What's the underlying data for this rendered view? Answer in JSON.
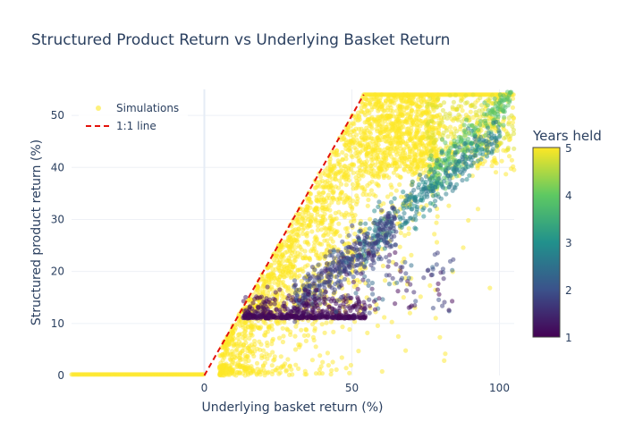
{
  "chart_data": {
    "type": "scatter",
    "title": "Structured Product Return vs Underlying Basket Return",
    "xlabel": "Underlying basket return (%)",
    "ylabel": "Structured product return (%)",
    "xlim": [
      -45,
      105
    ],
    "ylim": [
      0,
      55
    ],
    "x_ticks": [
      0,
      50,
      100
    ],
    "y_ticks": [
      0,
      10,
      20,
      30,
      40,
      50
    ],
    "grid": true,
    "legend": {
      "placement": "top-left",
      "entries": [
        {
          "label": "Simulations",
          "color": "#fde725",
          "marker": "circle"
        },
        {
          "label": "1:1 line",
          "color": "#e3120b",
          "marker": "dash"
        }
      ]
    },
    "colorbar": {
      "title": "Years held",
      "min": 1,
      "max": 5,
      "ticks": [
        1,
        2,
        3,
        4,
        5
      ],
      "colorscale": [
        "#440154",
        "#3b528b",
        "#21918c",
        "#5ec962",
        "#fde725"
      ]
    },
    "cap_level": 54,
    "series": [
      {
        "name": "Simulations",
        "groups": [
          {
            "years": 5,
            "pattern": "1:1 up to cap, floor at 0",
            "x_range": [
              -45,
              105
            ],
            "y_range": [
              0,
              54
            ]
          },
          {
            "years": 4,
            "slope": 0.55,
            "x_range": [
              75,
              105
            ],
            "y_range": [
              38,
              54
            ]
          },
          {
            "years": 3,
            "slope": 0.46,
            "x_range": [
              50,
              100
            ],
            "y_range": [
              24,
              40
            ]
          },
          {
            "years": 2,
            "slope": 0.42,
            "x_range": [
              35,
              65
            ],
            "y_range": [
              14,
              30
            ]
          },
          {
            "years": 1,
            "floor": 11,
            "x_range": [
              13,
              55
            ],
            "y_range": [
              11,
              16
            ]
          }
        ]
      },
      {
        "name": "1:1 line",
        "x": [
          0,
          54
        ],
        "y": [
          0,
          54
        ]
      }
    ]
  }
}
